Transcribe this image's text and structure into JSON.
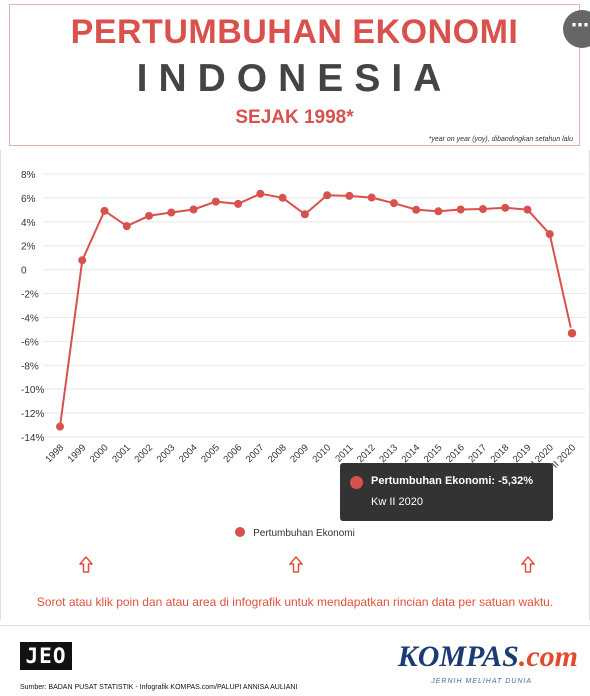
{
  "header": {
    "title_line1": "PERTUMBUHAN EKONOMI",
    "title_line2": "INDONESIA",
    "title_line3": "SEJAK 1998*",
    "footnote": "*year on year (yoy), dibandingkan setahun lalu"
  },
  "more_button": {
    "label": "⋯"
  },
  "chart_data": {
    "type": "line",
    "title": "",
    "xlabel": "",
    "ylabel": "",
    "ylim": [
      -14,
      8
    ],
    "y_ticks": [
      "8%",
      "6%",
      "4%",
      "2%",
      "0",
      "-2%",
      "-4%",
      "-6%",
      "-8%",
      "-10%",
      "-12%",
      "-14%"
    ],
    "y_tick_values": [
      8,
      6,
      4,
      2,
      0,
      -2,
      -4,
      -6,
      -8,
      -10,
      -12,
      -14
    ],
    "categories": [
      "1998",
      "1999",
      "2000",
      "2001",
      "2002",
      "2003",
      "2004",
      "2005",
      "2006",
      "2007",
      "2008",
      "2009",
      "2010",
      "2011",
      "2012",
      "2013",
      "2014",
      "2015",
      "2016",
      "2017",
      "2018",
      "2019",
      "Kw I 2020",
      "Kw II 2020"
    ],
    "series": [
      {
        "name": "Pertumbuhan Ekonomi",
        "color": "#d9514d",
        "values": [
          -13.13,
          0.79,
          4.92,
          3.64,
          4.5,
          4.78,
          5.03,
          5.69,
          5.5,
          6.35,
          6.01,
          4.63,
          6.22,
          6.17,
          6.03,
          5.56,
          5.01,
          4.88,
          5.03,
          5.07,
          5.17,
          5.02,
          2.97,
          -5.32
        ]
      }
    ],
    "grid": true,
    "legend": "bottom"
  },
  "tooltip": {
    "series_label": "Pertumbuhan Ekonomi: -5,32%",
    "period": "Kw II 2020"
  },
  "legend": {
    "label": "Pertumbuhan Ekonomi"
  },
  "hint": "Sorot atau klik poin dan atau area di infografik untuk mendapatkan rincian data per satuan waktu.",
  "footer": {
    "jeo_logo": "JEO",
    "source": "Sumber: BADAN PUSAT STATISTIK - Infografik KOMPAS.com/PALUPI ANNISA AULIANI",
    "kompas_main": "KOMPAS",
    "kompas_com": ".com",
    "tagline": "JERNIH MELIHAT DUNIA"
  }
}
